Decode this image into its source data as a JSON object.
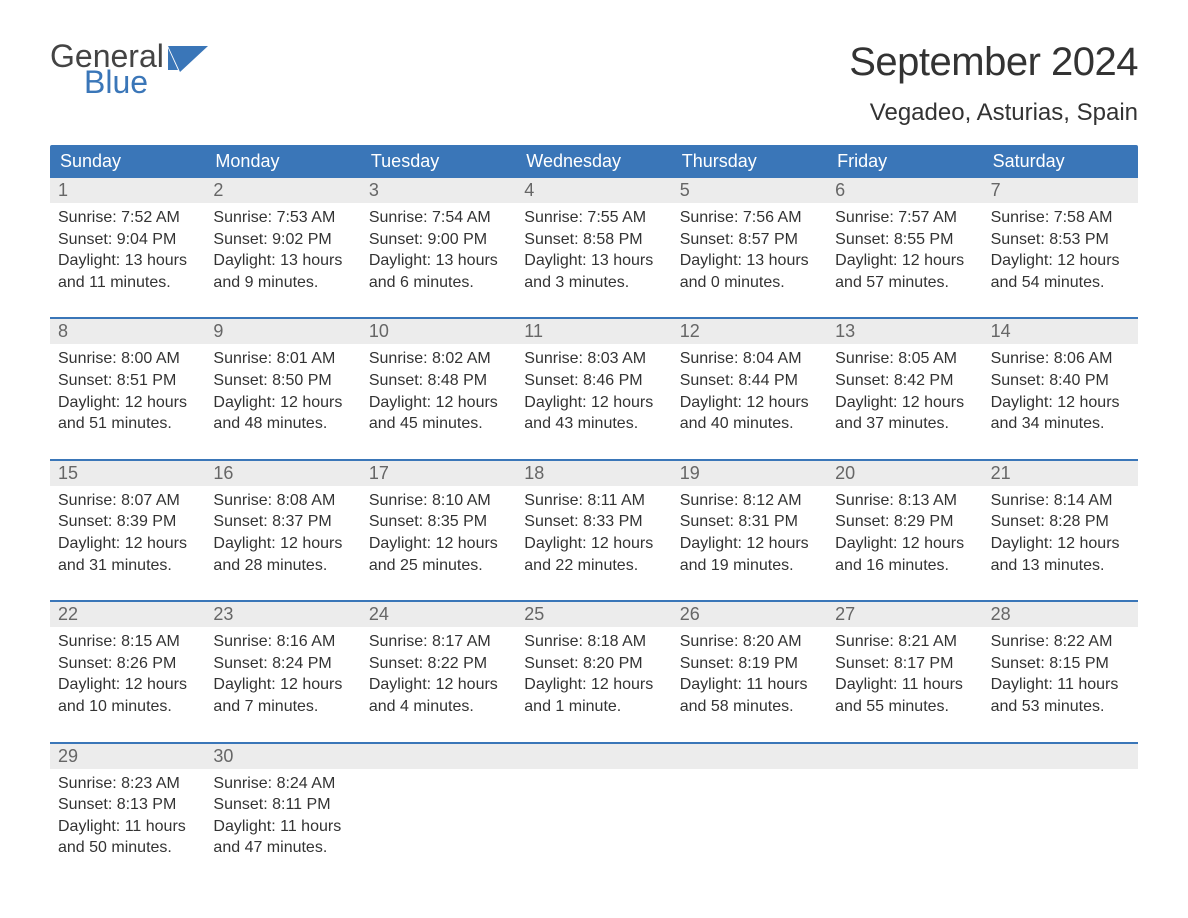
{
  "logo": {
    "line1": "General",
    "line2": "Blue",
    "flag_color": "#3a76b8",
    "text_gray": "#444444"
  },
  "title": "September 2024",
  "location": "Vegadeo, Asturias, Spain",
  "colors": {
    "header_bg": "#3a76b8",
    "header_text": "#ffffff",
    "daynum_bg": "#ececec",
    "daynum_text": "#666666",
    "body_text": "#333333",
    "page_bg": "#ffffff",
    "week_border": "#3a76b8"
  },
  "day_names": [
    "Sunday",
    "Monday",
    "Tuesday",
    "Wednesday",
    "Thursday",
    "Friday",
    "Saturday"
  ],
  "weeks": [
    [
      {
        "n": "1",
        "sunrise": "7:52 AM",
        "sunset": "9:04 PM",
        "daylight": "13 hours and 11 minutes."
      },
      {
        "n": "2",
        "sunrise": "7:53 AM",
        "sunset": "9:02 PM",
        "daylight": "13 hours and 9 minutes."
      },
      {
        "n": "3",
        "sunrise": "7:54 AM",
        "sunset": "9:00 PM",
        "daylight": "13 hours and 6 minutes."
      },
      {
        "n": "4",
        "sunrise": "7:55 AM",
        "sunset": "8:58 PM",
        "daylight": "13 hours and 3 minutes."
      },
      {
        "n": "5",
        "sunrise": "7:56 AM",
        "sunset": "8:57 PM",
        "daylight": "13 hours and 0 minutes."
      },
      {
        "n": "6",
        "sunrise": "7:57 AM",
        "sunset": "8:55 PM",
        "daylight": "12 hours and 57 minutes."
      },
      {
        "n": "7",
        "sunrise": "7:58 AM",
        "sunset": "8:53 PM",
        "daylight": "12 hours and 54 minutes."
      }
    ],
    [
      {
        "n": "8",
        "sunrise": "8:00 AM",
        "sunset": "8:51 PM",
        "daylight": "12 hours and 51 minutes."
      },
      {
        "n": "9",
        "sunrise": "8:01 AM",
        "sunset": "8:50 PM",
        "daylight": "12 hours and 48 minutes."
      },
      {
        "n": "10",
        "sunrise": "8:02 AM",
        "sunset": "8:48 PM",
        "daylight": "12 hours and 45 minutes."
      },
      {
        "n": "11",
        "sunrise": "8:03 AM",
        "sunset": "8:46 PM",
        "daylight": "12 hours and 43 minutes."
      },
      {
        "n": "12",
        "sunrise": "8:04 AM",
        "sunset": "8:44 PM",
        "daylight": "12 hours and 40 minutes."
      },
      {
        "n": "13",
        "sunrise": "8:05 AM",
        "sunset": "8:42 PM",
        "daylight": "12 hours and 37 minutes."
      },
      {
        "n": "14",
        "sunrise": "8:06 AM",
        "sunset": "8:40 PM",
        "daylight": "12 hours and 34 minutes."
      }
    ],
    [
      {
        "n": "15",
        "sunrise": "8:07 AM",
        "sunset": "8:39 PM",
        "daylight": "12 hours and 31 minutes."
      },
      {
        "n": "16",
        "sunrise": "8:08 AM",
        "sunset": "8:37 PM",
        "daylight": "12 hours and 28 minutes."
      },
      {
        "n": "17",
        "sunrise": "8:10 AM",
        "sunset": "8:35 PM",
        "daylight": "12 hours and 25 minutes."
      },
      {
        "n": "18",
        "sunrise": "8:11 AM",
        "sunset": "8:33 PM",
        "daylight": "12 hours and 22 minutes."
      },
      {
        "n": "19",
        "sunrise": "8:12 AM",
        "sunset": "8:31 PM",
        "daylight": "12 hours and 19 minutes."
      },
      {
        "n": "20",
        "sunrise": "8:13 AM",
        "sunset": "8:29 PM",
        "daylight": "12 hours and 16 minutes."
      },
      {
        "n": "21",
        "sunrise": "8:14 AM",
        "sunset": "8:28 PM",
        "daylight": "12 hours and 13 minutes."
      }
    ],
    [
      {
        "n": "22",
        "sunrise": "8:15 AM",
        "sunset": "8:26 PM",
        "daylight": "12 hours and 10 minutes."
      },
      {
        "n": "23",
        "sunrise": "8:16 AM",
        "sunset": "8:24 PM",
        "daylight": "12 hours and 7 minutes."
      },
      {
        "n": "24",
        "sunrise": "8:17 AM",
        "sunset": "8:22 PM",
        "daylight": "12 hours and 4 minutes."
      },
      {
        "n": "25",
        "sunrise": "8:18 AM",
        "sunset": "8:20 PM",
        "daylight": "12 hours and 1 minute."
      },
      {
        "n": "26",
        "sunrise": "8:20 AM",
        "sunset": "8:19 PM",
        "daylight": "11 hours and 58 minutes."
      },
      {
        "n": "27",
        "sunrise": "8:21 AM",
        "sunset": "8:17 PM",
        "daylight": "11 hours and 55 minutes."
      },
      {
        "n": "28",
        "sunrise": "8:22 AM",
        "sunset": "8:15 PM",
        "daylight": "11 hours and 53 minutes."
      }
    ],
    [
      {
        "n": "29",
        "sunrise": "8:23 AM",
        "sunset": "8:13 PM",
        "daylight": "11 hours and 50 minutes."
      },
      {
        "n": "30",
        "sunrise": "8:24 AM",
        "sunset": "8:11 PM",
        "daylight": "11 hours and 47 minutes."
      },
      null,
      null,
      null,
      null,
      null
    ]
  ],
  "labels": {
    "sunrise_prefix": "Sunrise: ",
    "sunset_prefix": "Sunset: ",
    "daylight_prefix": "Daylight: "
  }
}
